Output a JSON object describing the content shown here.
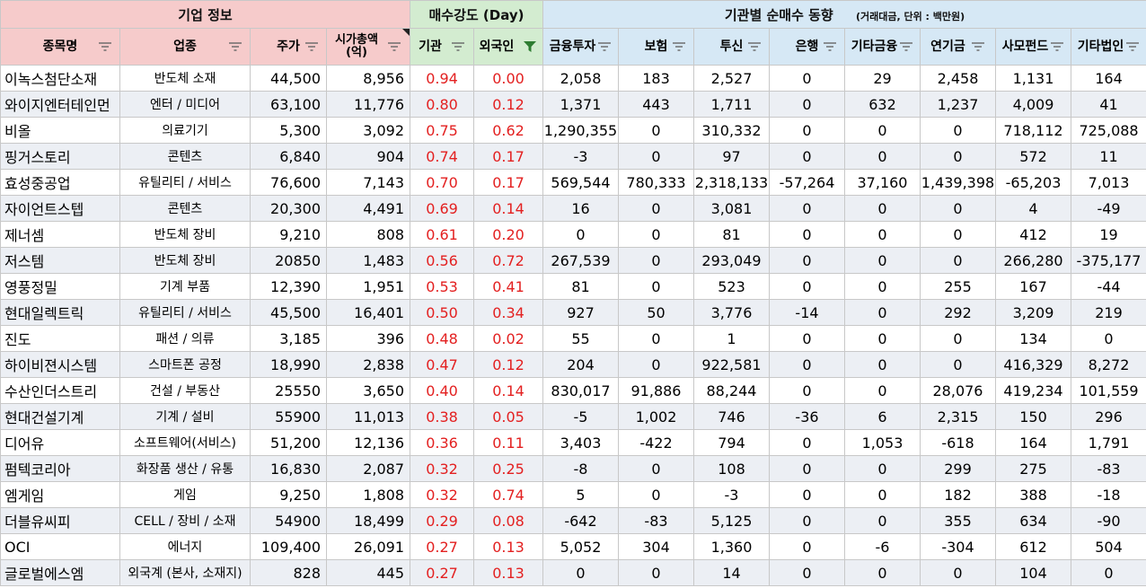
{
  "group_headers": {
    "company_info": "기업 정보",
    "buy_strength": "매수강도 (Day)",
    "inst_trend": "기관별 순매수 동향",
    "inst_trend_note": "(거래대금, 단위 : 백만원)"
  },
  "columns": {
    "name": "종목명",
    "industry": "업종",
    "price": "주가",
    "mcap_line1": "시가총액",
    "mcap_line2": "(억)",
    "inst": "기관",
    "foreign": "외국인",
    "fin_invest": "금융투자",
    "insurance": "보험",
    "trust": "투신",
    "bank": "은행",
    "other_fin": "기타금융",
    "pension": "연기금",
    "private_fund": "사모펀드",
    "other_corp": "기타법인"
  },
  "colors": {
    "company_header_bg": "#f6cbcb",
    "strength_header_bg": "#d3ecd0",
    "trend_header_bg": "#d6e8f5",
    "strength_text": "#e32020",
    "active_filter": "#2e7d32"
  },
  "icons": {
    "filter": "filter-icon",
    "active_filter": "funnel-filter-icon"
  },
  "rows": [
    [
      "이녹스첨단소재",
      "반도체 소재",
      "44,500",
      "8,956",
      "0.94",
      "0.00",
      "2,058",
      "183",
      "2,527",
      "0",
      "29",
      "2,458",
      "1,131",
      "164"
    ],
    [
      "와이지엔터테인먼",
      "엔터 / 미디어",
      "63,100",
      "11,776",
      "0.80",
      "0.12",
      "1,371",
      "443",
      "1,711",
      "0",
      "632",
      "1,237",
      "4,009",
      "41"
    ],
    [
      "비올",
      "의료기기",
      "5,300",
      "3,092",
      "0.75",
      "0.62",
      "1,290,355",
      "0",
      "310,332",
      "0",
      "0",
      "0",
      "718,112",
      "725,088"
    ],
    [
      "핑거스토리",
      "콘텐츠",
      "6,840",
      "904",
      "0.74",
      "0.17",
      "-3",
      "0",
      "97",
      "0",
      "0",
      "0",
      "572",
      "11"
    ],
    [
      "효성중공업",
      "유틸리티 / 서비스",
      "76,600",
      "7,143",
      "0.70",
      "0.17",
      "569,544",
      "780,333",
      "2,318,133",
      "-57,264",
      "37,160",
      "1,439,398",
      "-65,203",
      "7,013"
    ],
    [
      "자이언트스텝",
      "콘텐츠",
      "20,300",
      "4,491",
      "0.69",
      "0.14",
      "16",
      "0",
      "3,081",
      "0",
      "0",
      "0",
      "4",
      "-49"
    ],
    [
      "제너셈",
      "반도체 장비",
      "9,210",
      "808",
      "0.61",
      "0.20",
      "0",
      "0",
      "81",
      "0",
      "0",
      "0",
      "412",
      "19"
    ],
    [
      "저스템",
      "반도체 장비",
      "20850",
      "1,483",
      "0.56",
      "0.72",
      "267,539",
      "0",
      "293,049",
      "0",
      "0",
      "0",
      "266,280",
      "-375,177"
    ],
    [
      "영풍정밀",
      "기계 부품",
      "12,390",
      "1,951",
      "0.53",
      "0.41",
      "81",
      "0",
      "523",
      "0",
      "0",
      "255",
      "167",
      "-44"
    ],
    [
      "현대일렉트릭",
      "유틸리티 / 서비스",
      "45,500",
      "16,401",
      "0.50",
      "0.34",
      "927",
      "50",
      "3,776",
      "-14",
      "0",
      "292",
      "3,209",
      "219"
    ],
    [
      "진도",
      "패션 / 의류",
      "3,185",
      "396",
      "0.48",
      "0.02",
      "55",
      "0",
      "1",
      "0",
      "0",
      "0",
      "134",
      "0"
    ],
    [
      "하이비젼시스템",
      "스마트폰 공정",
      "18,990",
      "2,838",
      "0.47",
      "0.12",
      "204",
      "0",
      "922,581",
      "0",
      "0",
      "0",
      "416,329",
      "8,272"
    ],
    [
      "수산인더스트리",
      "건설 / 부동산",
      "25550",
      "3,650",
      "0.40",
      "0.14",
      "830,017",
      "91,886",
      "88,244",
      "0",
      "0",
      "28,076",
      "419,234",
      "101,559"
    ],
    [
      "현대건설기계",
      "기계 / 설비",
      "55900",
      "11,013",
      "0.38",
      "0.05",
      "-5",
      "1,002",
      "746",
      "-36",
      "6",
      "2,315",
      "150",
      "296"
    ],
    [
      "디어유",
      "소프트웨어(서비스)",
      "51,200",
      "12,136",
      "0.36",
      "0.11",
      "3,403",
      "-422",
      "794",
      "0",
      "1,053",
      "-618",
      "164",
      "1,791"
    ],
    [
      "펌텍코리아",
      "화장품 생산 / 유통",
      "16,830",
      "2,087",
      "0.32",
      "0.25",
      "-8",
      "0",
      "108",
      "0",
      "0",
      "299",
      "275",
      "-83"
    ],
    [
      "엠게임",
      "게임",
      "9,250",
      "1,808",
      "0.32",
      "0.74",
      "5",
      "0",
      "-3",
      "0",
      "0",
      "182",
      "388",
      "-18"
    ],
    [
      "더블유씨피",
      "CELL / 장비 / 소재",
      "54900",
      "18,499",
      "0.29",
      "0.08",
      "-642",
      "-83",
      "5,125",
      "0",
      "0",
      "355",
      "634",
      "-90"
    ],
    [
      "OCI",
      "에너지",
      "109,400",
      "26,091",
      "0.27",
      "0.13",
      "5,052",
      "304",
      "1,360",
      "0",
      "-6",
      "-304",
      "612",
      "504"
    ],
    [
      "글로벌에스엠",
      "외국계 (본사, 소재지)",
      "828",
      "445",
      "0.27",
      "0.13",
      "0",
      "0",
      "14",
      "0",
      "0",
      "0",
      "104",
      "0"
    ]
  ]
}
